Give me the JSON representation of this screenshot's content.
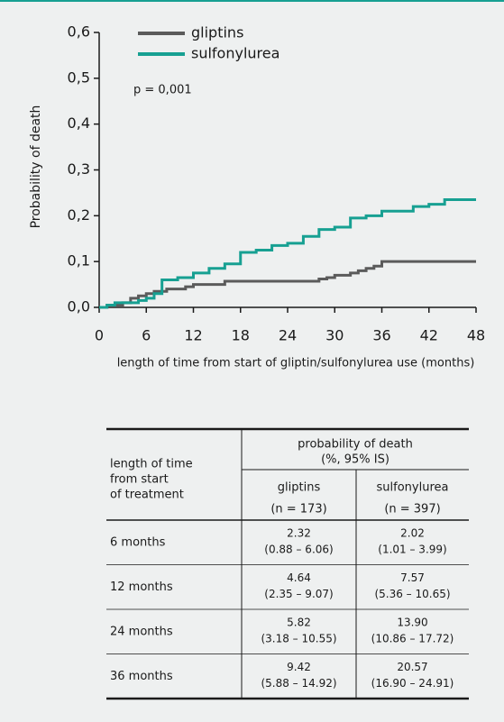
{
  "chart_data": {
    "type": "step-line",
    "ylabel": "Probability of death",
    "xlabel": "length of time from start of gliptin/sulfonylurea use (months)",
    "annotation": "p = 0,001",
    "xlim": [
      0,
      48
    ],
    "xticks": [
      0,
      6,
      12,
      18,
      24,
      30,
      36,
      42,
      48
    ],
    "ylim": [
      0,
      0.6
    ],
    "yticks": [
      {
        "value": 0,
        "label": "0,0"
      },
      {
        "value": 0.1,
        "label": "0,1"
      },
      {
        "value": 0.2,
        "label": "0,2"
      },
      {
        "value": 0.3,
        "label": "0,3"
      },
      {
        "value": 0.4,
        "label": "0,4"
      },
      {
        "value": 0.5,
        "label": "0,5"
      },
      {
        "value": 0.6,
        "label": "0,6"
      }
    ],
    "series": [
      {
        "name": "gliptins",
        "color": "#5b5b5b",
        "x": [
          0,
          1,
          3,
          4,
          5,
          6,
          7,
          8.6,
          11,
          12,
          14,
          16,
          28,
          29,
          30,
          32,
          33,
          34,
          35,
          36,
          48
        ],
        "values": [
          0,
          0.005,
          0.01,
          0.02,
          0.025,
          0.03,
          0.035,
          0.04,
          0.045,
          0.05,
          0.05,
          0.057,
          0.062,
          0.065,
          0.07,
          0.075,
          0.08,
          0.085,
          0.09,
          0.1,
          0.1
        ]
      },
      {
        "name": "sulfonylurea",
        "color": "#17a092",
        "x": [
          0,
          1,
          2,
          5,
          6,
          7,
          8,
          10,
          12,
          14,
          16,
          18,
          20,
          22,
          24,
          26,
          28,
          30,
          32,
          34,
          36,
          40,
          42,
          44,
          48
        ],
        "values": [
          0,
          0.005,
          0.01,
          0.015,
          0.02,
          0.03,
          0.06,
          0.065,
          0.075,
          0.085,
          0.095,
          0.12,
          0.125,
          0.135,
          0.14,
          0.155,
          0.17,
          0.175,
          0.195,
          0.2,
          0.21,
          0.22,
          0.225,
          0.235,
          0.235
        ]
      }
    ]
  },
  "table": {
    "row_header": [
      "length of time",
      "from start",
      "of treatment"
    ],
    "group_header": "probability of death",
    "group_sub": "(%, 95% IS)",
    "columns": [
      {
        "name": "gliptins",
        "n": "(n = 173)"
      },
      {
        "name": "sulfonylurea",
        "n": "(n = 397)"
      }
    ],
    "rows": [
      {
        "label": "6 months",
        "cells": [
          {
            "value": "2.32",
            "ci": "(0.88 – 6.06)"
          },
          {
            "value": "2.02",
            "ci": "(1.01 – 3.99)"
          }
        ]
      },
      {
        "label": "12 months",
        "cells": [
          {
            "value": "4.64",
            "ci": "(2.35 – 9.07)"
          },
          {
            "value": "7.57",
            "ci": "(5.36 – 10.65)"
          }
        ]
      },
      {
        "label": "24 months",
        "cells": [
          {
            "value": "5.82",
            "ci": "(3.18 – 10.55)"
          },
          {
            "value": "13.90",
            "ci": "(10.86 – 17.72)"
          }
        ]
      },
      {
        "label": "36 months",
        "cells": [
          {
            "value": "9.42",
            "ci": "(5.88 – 14.92)"
          },
          {
            "value": "20.57",
            "ci": "(16.90 – 24.91)"
          }
        ]
      }
    ]
  }
}
